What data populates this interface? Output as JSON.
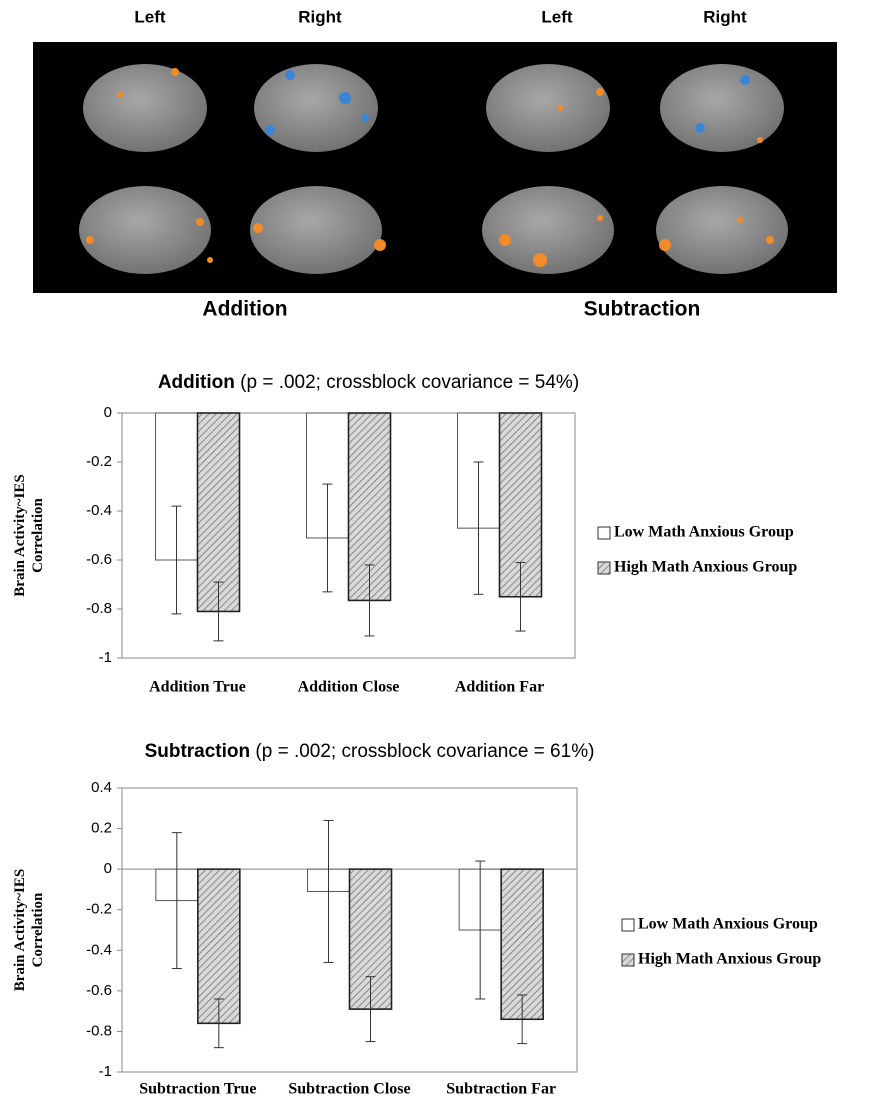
{
  "brain_panel": {
    "hemisphere_labels": [
      "Left",
      "Right",
      "Left",
      "Right"
    ],
    "condition_labels": [
      "Addition",
      "Subtraction"
    ]
  },
  "chart_data": [
    {
      "type": "bar",
      "title": "Addition",
      "subtitle": "(p = .002; crossblock covariance = 54%)",
      "ylabel": [
        "Brain Activity~IES",
        "Correlation"
      ],
      "categories": [
        "Addition True",
        "Addition Close",
        "Addition Far"
      ],
      "series": [
        {
          "name": "Low Math Anxious Group",
          "color": "#ffffff",
          "hatch": false,
          "values": [
            -0.6,
            -0.51,
            -0.47
          ],
          "errors": [
            0.22,
            0.22,
            0.27
          ]
        },
        {
          "name": "High Math Anxious Group",
          "color": "#d9d9d9",
          "hatch": true,
          "values": [
            -0.81,
            -0.765,
            -0.75
          ],
          "errors": [
            0.12,
            0.145,
            0.14
          ]
        }
      ],
      "ylim": [
        -1,
        0
      ],
      "yticks": [
        0,
        -0.2,
        -0.4,
        -0.6,
        -0.8,
        -1
      ],
      "grid": false,
      "legend": "right"
    },
    {
      "type": "bar",
      "title": "Subtraction",
      "subtitle": "(p = .002; crossblock covariance = 61%)",
      "ylabel": [
        "Brain Activity~IES",
        "Correlation"
      ],
      "categories": [
        "Subtraction True",
        "Subtraction Close",
        "Subtraction Far"
      ],
      "series": [
        {
          "name": "Low Math Anxious Group",
          "color": "#ffffff",
          "hatch": false,
          "values": [
            -0.155,
            -0.11,
            -0.3
          ],
          "errors": [
            0.335,
            0.35,
            0.34
          ]
        },
        {
          "name": "High Math Anxious Group",
          "color": "#d9d9d9",
          "hatch": true,
          "values": [
            -0.76,
            -0.69,
            -0.74
          ],
          "errors": [
            0.12,
            0.16,
            0.12
          ]
        }
      ],
      "ylim": [
        -1,
        0.4
      ],
      "yticks": [
        0.4,
        0.2,
        0,
        -0.2,
        -0.4,
        -0.6,
        -0.8,
        -1
      ],
      "grid": false,
      "legend": "right"
    }
  ]
}
